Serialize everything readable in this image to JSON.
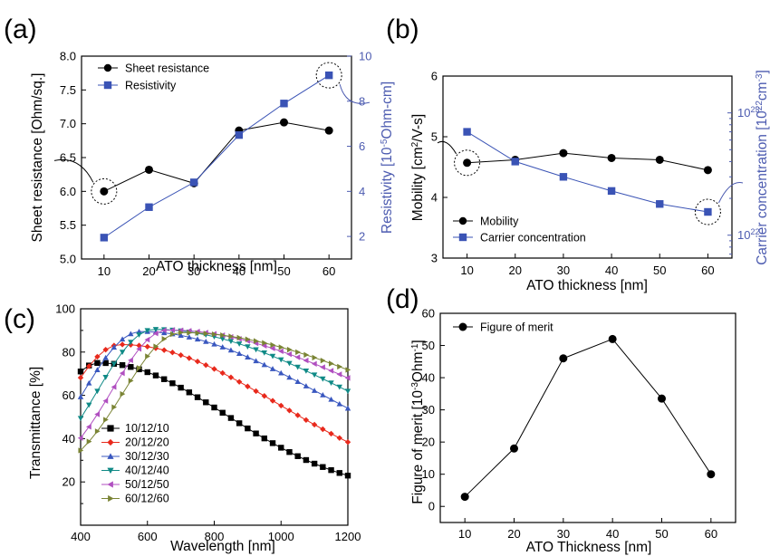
{
  "colors": {
    "black": "#000000",
    "blue": "#3a53b5",
    "axis_blue": "#4c5bb0",
    "red": "#e8291c",
    "navy": "#3957bf",
    "teal": "#0f8a86",
    "magenta": "#b04fc0",
    "olive": "#7a8434"
  },
  "chart_data": [
    {
      "panel": "(a)",
      "type": "line",
      "x": [
        10,
        20,
        30,
        40,
        50,
        60
      ],
      "xlabel": "ATO thickness [nm]",
      "xlim": [
        5,
        65
      ],
      "xticks": [
        "10",
        "20",
        "30",
        "40",
        "50",
        "60"
      ],
      "y_left": {
        "label": "Sheet resistance [Ohm/sq.]",
        "lim": [
          5.0,
          8.0
        ],
        "ticks": [
          "5.0",
          "5.5",
          "6.0",
          "6.5",
          "7.0",
          "7.5",
          "8.0"
        ]
      },
      "y_right": {
        "label_pre": "Resistivity [10",
        "label_sup": "-5",
        "label_post": "Ohm-cm]",
        "lim": [
          1,
          10
        ],
        "ticks": [
          "2",
          "4",
          "6",
          "8",
          "10"
        ]
      },
      "series": [
        {
          "name": "Sheet resistance",
          "axis": "left",
          "marker": "circle",
          "color": "#000000",
          "values": [
            6.0,
            6.32,
            6.12,
            6.9,
            7.02,
            6.9
          ]
        },
        {
          "name": "Resistivity",
          "axis": "right",
          "marker": "square",
          "color": "#3a53b5",
          "values": [
            1.95,
            3.3,
            4.4,
            6.5,
            7.9,
            9.15
          ]
        }
      ]
    },
    {
      "panel": "(b)",
      "type": "line",
      "x": [
        10,
        20,
        30,
        40,
        50,
        60
      ],
      "xlabel": "ATO thickness [nm]",
      "xlim": [
        5,
        65
      ],
      "xticks": [
        "10",
        "20",
        "30",
        "40",
        "50",
        "60"
      ],
      "y_left": {
        "label_pre": "Mobility [cm",
        "label_sup": "2",
        "label_post": "/V-s]",
        "lim": [
          3,
          6
        ],
        "ticks": [
          "3",
          "4",
          "5",
          "6"
        ]
      },
      "y_right": {
        "label_pre": "Carrier concentration [10",
        "label_sup": "22",
        "label_mid": "cm",
        "label_sup2": "-3",
        "label_post": "]",
        "scale": "log",
        "lim": [
          6.5e+21,
          2e+23
        ],
        "ticks": [
          {
            "value": 1e+22,
            "base": "10",
            "exp": "22"
          },
          {
            "value": 1e+23,
            "base": "10",
            "exp": "23"
          }
        ]
      },
      "series": [
        {
          "name": "Mobility",
          "axis": "left",
          "marker": "circle",
          "color": "#000000",
          "values": [
            4.57,
            4.62,
            4.73,
            4.65,
            4.62,
            4.45
          ]
        },
        {
          "name": "Carrier concentration",
          "axis": "right",
          "marker": "square",
          "color": "#3a53b5",
          "values": [
            7e+22,
            4e+22,
            3e+22,
            2.3e+22,
            1.8e+22,
            1.55e+22
          ]
        }
      ]
    },
    {
      "panel": "(c)",
      "type": "line",
      "xlabel": "Wavelength [nm]",
      "ylabel": "Transmittance [%]",
      "xlim": [
        400,
        1200
      ],
      "ylim": [
        0,
        100
      ],
      "xticks": [
        "400",
        "600",
        "800",
        "1000",
        "1200"
      ],
      "yticks": [
        "20",
        "40",
        "60",
        "80",
        "100"
      ],
      "series": [
        {
          "name": "10/12/10",
          "marker": "square",
          "color": "#000000",
          "peak_x": 455,
          "peak_y": 75,
          "w_left": 150,
          "w_right": 380,
          "floor": 14
        },
        {
          "name": "20/12/20",
          "marker": "diamond",
          "color": "#e8291c",
          "peak_x": 520,
          "peak_y": 83.5,
          "w_left": 170,
          "w_right": 470,
          "floor": 14
        },
        {
          "name": "30/12/30",
          "marker": "triangle-up",
          "color": "#3957bf",
          "peak_x": 580,
          "peak_y": 89.5,
          "w_left": 175,
          "w_right": 540,
          "floor": 16
        },
        {
          "name": "40/12/40",
          "marker": "triangle-down",
          "color": "#0f8a86",
          "peak_x": 620,
          "peak_y": 90.5,
          "w_left": 170,
          "w_right": 580,
          "floor": 18
        },
        {
          "name": "50/12/50",
          "marker": "triangle-left",
          "color": "#b04fc0",
          "peak_x": 660,
          "peak_y": 90.2,
          "w_left": 165,
          "w_right": 620,
          "floor": 20
        },
        {
          "name": "60/12/60",
          "marker": "triangle-right",
          "color": "#7a8434",
          "peak_x": 700,
          "peak_y": 89,
          "w_left": 170,
          "w_right": 660,
          "floor": 20
        }
      ]
    },
    {
      "panel": "(d)",
      "type": "line",
      "x": [
        10,
        20,
        30,
        40,
        50,
        60
      ],
      "xlabel": "ATO Thickness [nm]",
      "ylabel_pre": "Figure of merit [10",
      "ylabel_sup": "-3",
      "ylabel_mid": "Ohm",
      "ylabel_sup2": "-1",
      "ylabel_post": "]",
      "xlim": [
        5,
        65
      ],
      "ylim": [
        -5,
        60
      ],
      "xticks": [
        "10",
        "20",
        "30",
        "40",
        "50",
        "60"
      ],
      "yticks": [
        "0",
        "10",
        "20",
        "30",
        "40",
        "50",
        "60"
      ],
      "series": [
        {
          "name": "Figure of merit",
          "marker": "circle",
          "color": "#000000",
          "values": [
            3,
            18,
            46,
            52,
            33.5,
            10
          ]
        }
      ]
    }
  ]
}
